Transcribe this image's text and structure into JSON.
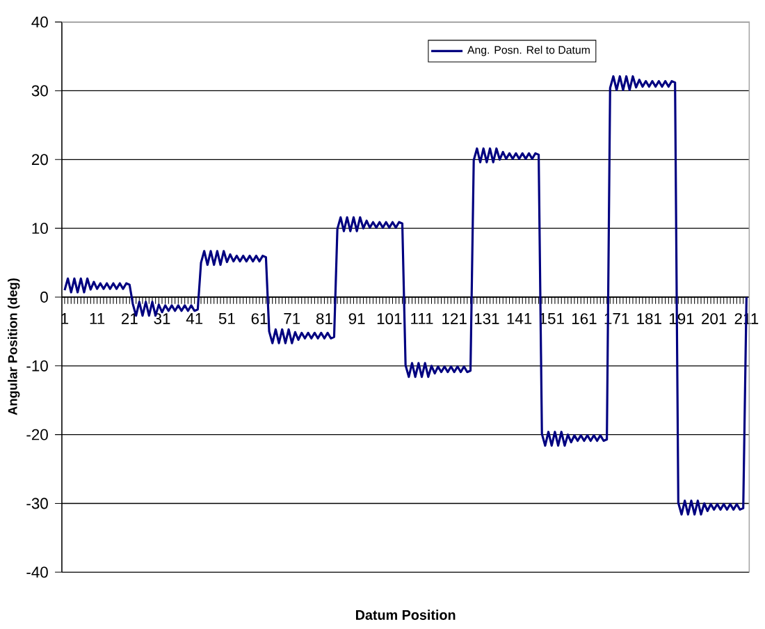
{
  "chart_data": {
    "type": "line",
    "xlabel": "Datum Position",
    "ylabel": "Angular Position (deg)",
    "categories": [
      "1",
      null,
      null,
      null,
      null,
      null,
      null,
      null,
      null,
      null,
      "11",
      null,
      null,
      null,
      null,
      null,
      null,
      null,
      null,
      null,
      "21",
      null,
      null,
      null,
      null,
      null,
      null,
      null,
      null,
      null,
      "31",
      null,
      null,
      null,
      null,
      null,
      null,
      null,
      null,
      null,
      "41",
      null,
      null,
      null,
      null,
      null,
      null,
      null,
      null,
      null,
      "51",
      null,
      null,
      null,
      null,
      null,
      null,
      null,
      null,
      null,
      "61",
      null,
      null,
      null,
      null,
      null,
      null,
      null,
      null,
      null,
      "71",
      null,
      null,
      null,
      null,
      null,
      null,
      null,
      null,
      null,
      "81",
      null,
      null,
      null,
      null,
      null,
      null,
      null,
      null,
      null,
      "91",
      null,
      null,
      null,
      null,
      null,
      null,
      null,
      null,
      null,
      "101",
      null,
      null,
      null,
      null,
      null,
      null,
      null,
      null,
      null,
      "111",
      null,
      null,
      null,
      null,
      null,
      null,
      null,
      null,
      null,
      "121",
      null,
      null,
      null,
      null,
      null,
      null,
      null,
      null,
      null,
      "131",
      null,
      null,
      null,
      null,
      null,
      null,
      null,
      null,
      null,
      "141",
      null,
      null,
      null,
      null,
      null,
      null,
      null,
      null,
      null,
      "151",
      null,
      null,
      null,
      null,
      null,
      null,
      null,
      null,
      null,
      "161",
      null,
      null,
      null,
      null,
      null,
      null,
      null,
      null,
      null,
      "171",
      null,
      null,
      null,
      null,
      null,
      null,
      null,
      null,
      null,
      "181",
      null,
      null,
      null,
      null,
      null,
      null,
      null,
      null,
      null,
      "191",
      null,
      null,
      null,
      null,
      null,
      null,
      null,
      null,
      null,
      "201",
      null,
      null,
      null,
      null,
      null,
      null,
      null,
      null,
      null,
      "211"
    ],
    "series": [
      {
        "name": "Ang. Posn. Rel to Datum",
        "color": "#000080",
        "values": [
          1.0,
          2.7,
          0.7,
          2.7,
          0.7,
          2.7,
          0.7,
          2.7,
          1.1,
          2.2,
          1.2,
          2.0,
          1.2,
          2.0,
          1.2,
          2.0,
          1.2,
          2.0,
          1.2,
          2.0,
          1.8,
          -1.0,
          -2.7,
          -0.7,
          -2.7,
          -0.7,
          -2.7,
          -0.7,
          -2.7,
          -1.1,
          -2.2,
          -1.2,
          -2.0,
          -1.2,
          -2.0,
          -1.2,
          -2.0,
          -1.2,
          -2.0,
          -1.2,
          -2.0,
          -1.8,
          5.0,
          6.7,
          4.7,
          6.7,
          4.7,
          6.7,
          4.7,
          6.7,
          5.1,
          6.2,
          5.2,
          6.0,
          5.2,
          6.0,
          5.2,
          6.0,
          5.2,
          6.0,
          5.2,
          6.0,
          5.8,
          -5.0,
          -6.7,
          -4.7,
          -6.7,
          -4.7,
          -6.7,
          -4.7,
          -6.7,
          -5.1,
          -6.2,
          -5.2,
          -6.0,
          -5.2,
          -6.0,
          -5.2,
          -6.0,
          -5.2,
          -6.0,
          -5.2,
          -6.0,
          -5.8,
          9.9,
          11.6,
          9.6,
          11.6,
          9.6,
          11.6,
          9.6,
          11.6,
          10.0,
          11.1,
          10.1,
          10.9,
          10.1,
          10.9,
          10.1,
          10.9,
          10.1,
          10.9,
          10.1,
          10.9,
          10.7,
          -9.9,
          -11.6,
          -9.6,
          -11.6,
          -9.6,
          -11.6,
          -9.6,
          -11.6,
          -10.0,
          -11.1,
          -10.1,
          -10.9,
          -10.1,
          -10.9,
          -10.1,
          -10.9,
          -10.1,
          -10.9,
          -10.1,
          -10.9,
          -10.7,
          19.9,
          21.6,
          19.6,
          21.6,
          19.6,
          21.6,
          19.6,
          21.6,
          20.0,
          21.1,
          20.1,
          20.9,
          20.1,
          20.9,
          20.1,
          20.9,
          20.1,
          20.9,
          20.1,
          20.9,
          20.7,
          -19.9,
          -21.6,
          -19.6,
          -21.6,
          -19.6,
          -21.6,
          -19.6,
          -21.6,
          -20.0,
          -21.1,
          -20.1,
          -20.9,
          -20.1,
          -20.9,
          -20.1,
          -20.9,
          -20.1,
          -20.9,
          -20.1,
          -20.9,
          -20.7,
          30.4,
          32.1,
          30.1,
          32.1,
          30.1,
          32.1,
          30.1,
          32.1,
          30.5,
          31.6,
          30.6,
          31.4,
          30.6,
          31.4,
          30.6,
          31.4,
          30.6,
          31.4,
          30.6,
          31.4,
          31.2,
          -29.9,
          -31.6,
          -29.6,
          -31.6,
          -29.6,
          -31.6,
          -29.6,
          -31.6,
          -30.0,
          -31.1,
          -30.1,
          -30.9,
          -30.1,
          -30.9,
          -30.1,
          -30.9,
          -30.1,
          -30.9,
          -30.1,
          -30.9,
          -30.7,
          0
        ]
      }
    ],
    "ylim": [
      -40,
      40
    ],
    "yticks": [
      -40,
      -30,
      -20,
      -10,
      0,
      10,
      20,
      30,
      40
    ],
    "grid": "y",
    "legend": "top right"
  }
}
